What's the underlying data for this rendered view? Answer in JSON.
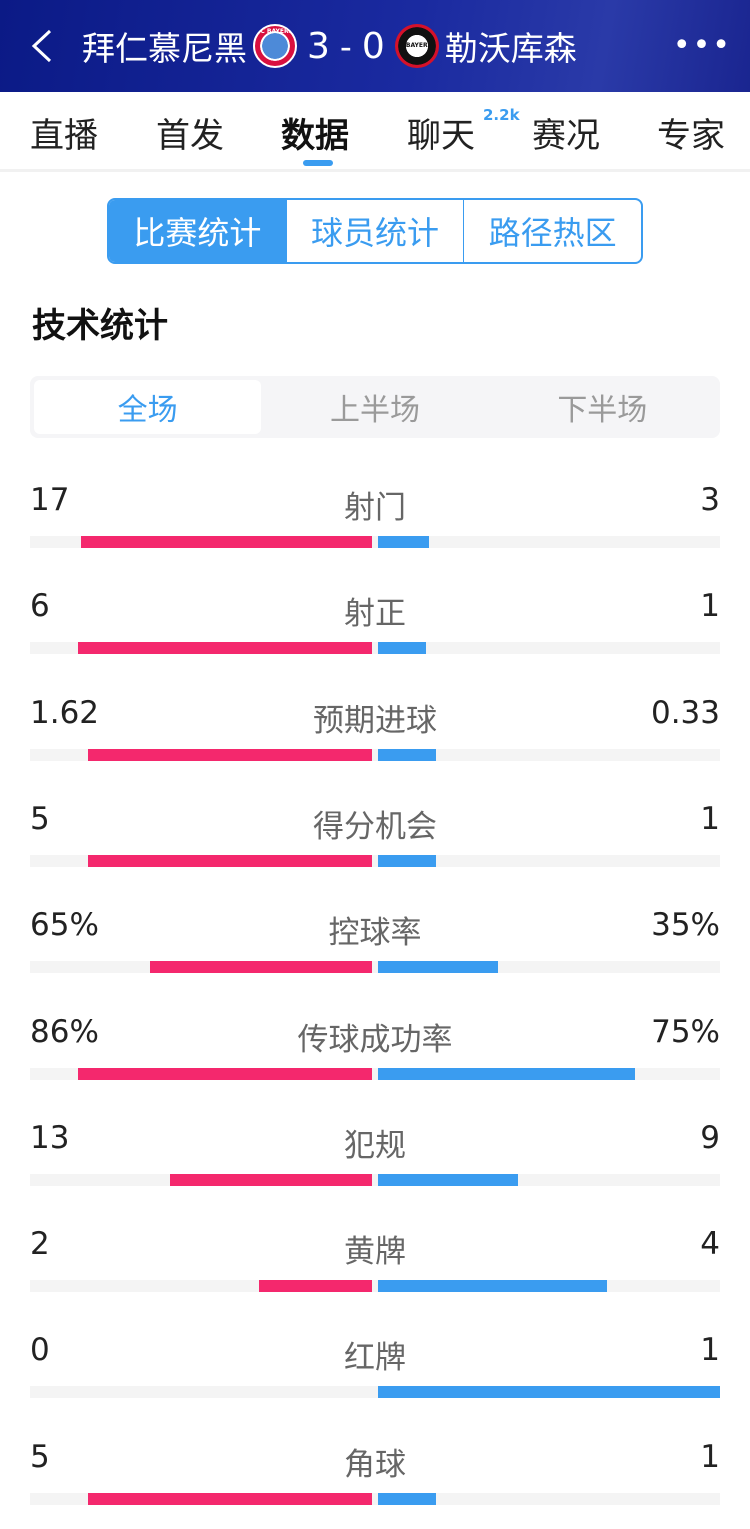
{
  "header": {
    "home_team": "拜仁慕尼黑",
    "home_score": "3",
    "separator": "-",
    "away_score": "0",
    "away_team": "勒沃库森",
    "home_badge": "FC BAYERN",
    "away_badge": "BAYER"
  },
  "tabs": [
    {
      "label": "直播"
    },
    {
      "label": "首发"
    },
    {
      "label": "数据",
      "active": true
    },
    {
      "label": "聊天",
      "badge": "2.2k"
    },
    {
      "label": "赛况"
    },
    {
      "label": "专家"
    }
  ],
  "segments": [
    "比赛统计",
    "球员统计",
    "路径热区"
  ],
  "section_title": "技术统计",
  "periods": [
    "全场",
    "上半场",
    "下半场"
  ],
  "colors": {
    "home": "#f4286d",
    "away": "#3a9cf0"
  },
  "stats": [
    {
      "label": "射门",
      "home": "17",
      "away": "3",
      "home_fill": 0.85,
      "away_fill": 0.15
    },
    {
      "label": "射正",
      "home": "6",
      "away": "1",
      "home_fill": 0.86,
      "away_fill": 0.14
    },
    {
      "label": "预期进球",
      "home": "1.62",
      "away": "0.33",
      "home_fill": 0.83,
      "away_fill": 0.17
    },
    {
      "label": "得分机会",
      "home": "5",
      "away": "1",
      "home_fill": 0.83,
      "away_fill": 0.17
    },
    {
      "label": "控球率",
      "home": "65%",
      "away": "35%",
      "home_fill": 0.65,
      "away_fill": 0.35
    },
    {
      "label": "传球成功率",
      "home": "86%",
      "away": "75%",
      "home_fill": 0.86,
      "away_fill": 0.75
    },
    {
      "label": "犯规",
      "home": "13",
      "away": "9",
      "home_fill": 0.59,
      "away_fill": 0.41
    },
    {
      "label": "黄牌",
      "home": "2",
      "away": "4",
      "home_fill": 0.33,
      "away_fill": 0.67
    },
    {
      "label": "红牌",
      "home": "0",
      "away": "1",
      "home_fill": 0,
      "away_fill": 1
    },
    {
      "label": "角球",
      "home": "5",
      "away": "1",
      "home_fill": 0.83,
      "away_fill": 0.17
    }
  ]
}
